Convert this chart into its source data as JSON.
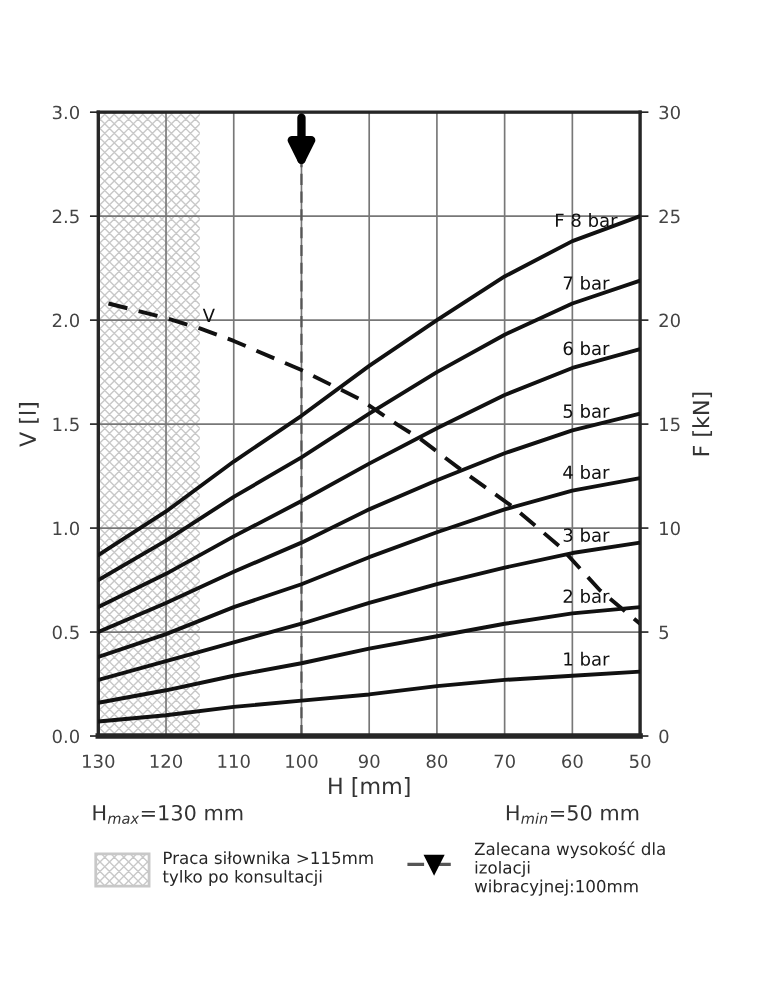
{
  "chart_data": {
    "type": "line",
    "xlabel": "H [mm]",
    "ylabel": "V [l]",
    "y2label": "F [kN]",
    "x": [
      130,
      120,
      110,
      100,
      90,
      80,
      70,
      60,
      50
    ],
    "xlim": [
      130,
      50
    ],
    "xticks": [
      130,
      120,
      110,
      100,
      90,
      80,
      70,
      60,
      50
    ],
    "ylim": [
      0,
      3
    ],
    "yticks": [
      {
        "value": 0,
        "label": "0.0"
      },
      0.5,
      {
        "value": 1,
        "label": "1.0"
      },
      1.5,
      {
        "value": 2,
        "label": "2.0"
      },
      2.5,
      {
        "value": 3,
        "label": "3.0"
      }
    ],
    "y2lim": [
      0,
      30
    ],
    "y2ticks": [
      0,
      5,
      10,
      15,
      20,
      25,
      30
    ],
    "grid": true,
    "legend": "bottom",
    "marker": "none",
    "series": [
      {
        "name": "1 bar",
        "color": "#111111",
        "axis": "y2",
        "values": [
          0.7,
          1.0,
          1.4,
          1.7,
          2.0,
          2.4,
          2.7,
          2.9,
          3.1
        ]
      },
      {
        "name": "2 bar",
        "color": "#111111",
        "axis": "y2",
        "values": [
          1.6,
          2.2,
          2.9,
          3.5,
          4.2,
          4.8,
          5.4,
          5.9,
          6.2
        ]
      },
      {
        "name": "3 bar",
        "color": "#111111",
        "axis": "y2",
        "values": [
          2.7,
          3.6,
          4.5,
          5.4,
          6.4,
          7.3,
          8.1,
          8.8,
          9.3
        ]
      },
      {
        "name": "4 bar",
        "color": "#111111",
        "axis": "y2",
        "values": [
          3.8,
          4.9,
          6.2,
          7.3,
          8.6,
          9.8,
          10.9,
          11.8,
          12.4
        ]
      },
      {
        "name": "5 bar",
        "color": "#111111",
        "axis": "y2",
        "values": [
          5.0,
          6.4,
          7.9,
          9.3,
          10.9,
          12.3,
          13.6,
          14.7,
          15.5
        ]
      },
      {
        "name": "6 bar",
        "color": "#111111",
        "axis": "y2",
        "values": [
          6.2,
          7.8,
          9.6,
          11.3,
          13.1,
          14.8,
          16.4,
          17.7,
          18.6
        ]
      },
      {
        "name": "7 bar",
        "color": "#111111",
        "axis": "y2",
        "values": [
          7.5,
          9.4,
          11.5,
          13.4,
          15.5,
          17.5,
          19.3,
          20.8,
          21.9
        ]
      },
      {
        "name": "F 8 bar",
        "color": "#111111",
        "axis": "y2",
        "values": [
          8.7,
          10.8,
          13.2,
          15.4,
          17.8,
          20.0,
          22.1,
          23.8,
          25.0
        ]
      },
      {
        "name": "V",
        "color": "#111111",
        "line_style": "dashed",
        "x": [
          128.5,
          120,
          115,
          110,
          100,
          91.4,
          85.5,
          82.5,
          75.6,
          68.7,
          61.8,
          55.9,
          50
        ],
        "values": [
          2.08,
          2.01,
          1.96,
          1.9,
          1.76,
          1.62,
          1.49,
          1.43,
          1.26,
          1.1,
          0.91,
          0.7,
          0.54
        ]
      }
    ],
    "bands": [
      {
        "axis": "x",
        "from": 130,
        "to": 115,
        "label": "Praca siłownika >115mm tylko po konsultacji",
        "color": "#c8c8c8"
      }
    ],
    "ref_lines": [
      {
        "axis": "x",
        "value": 100,
        "label": "Zalecana wysokość dla izolacji wibracyjnej:100mm",
        "color": "#555555",
        "line_style": "dashed"
      }
    ],
    "annotations": [
      "H$_{max}$=130 mm",
      "H$_{min}$=50 mm"
    ]
  }
}
